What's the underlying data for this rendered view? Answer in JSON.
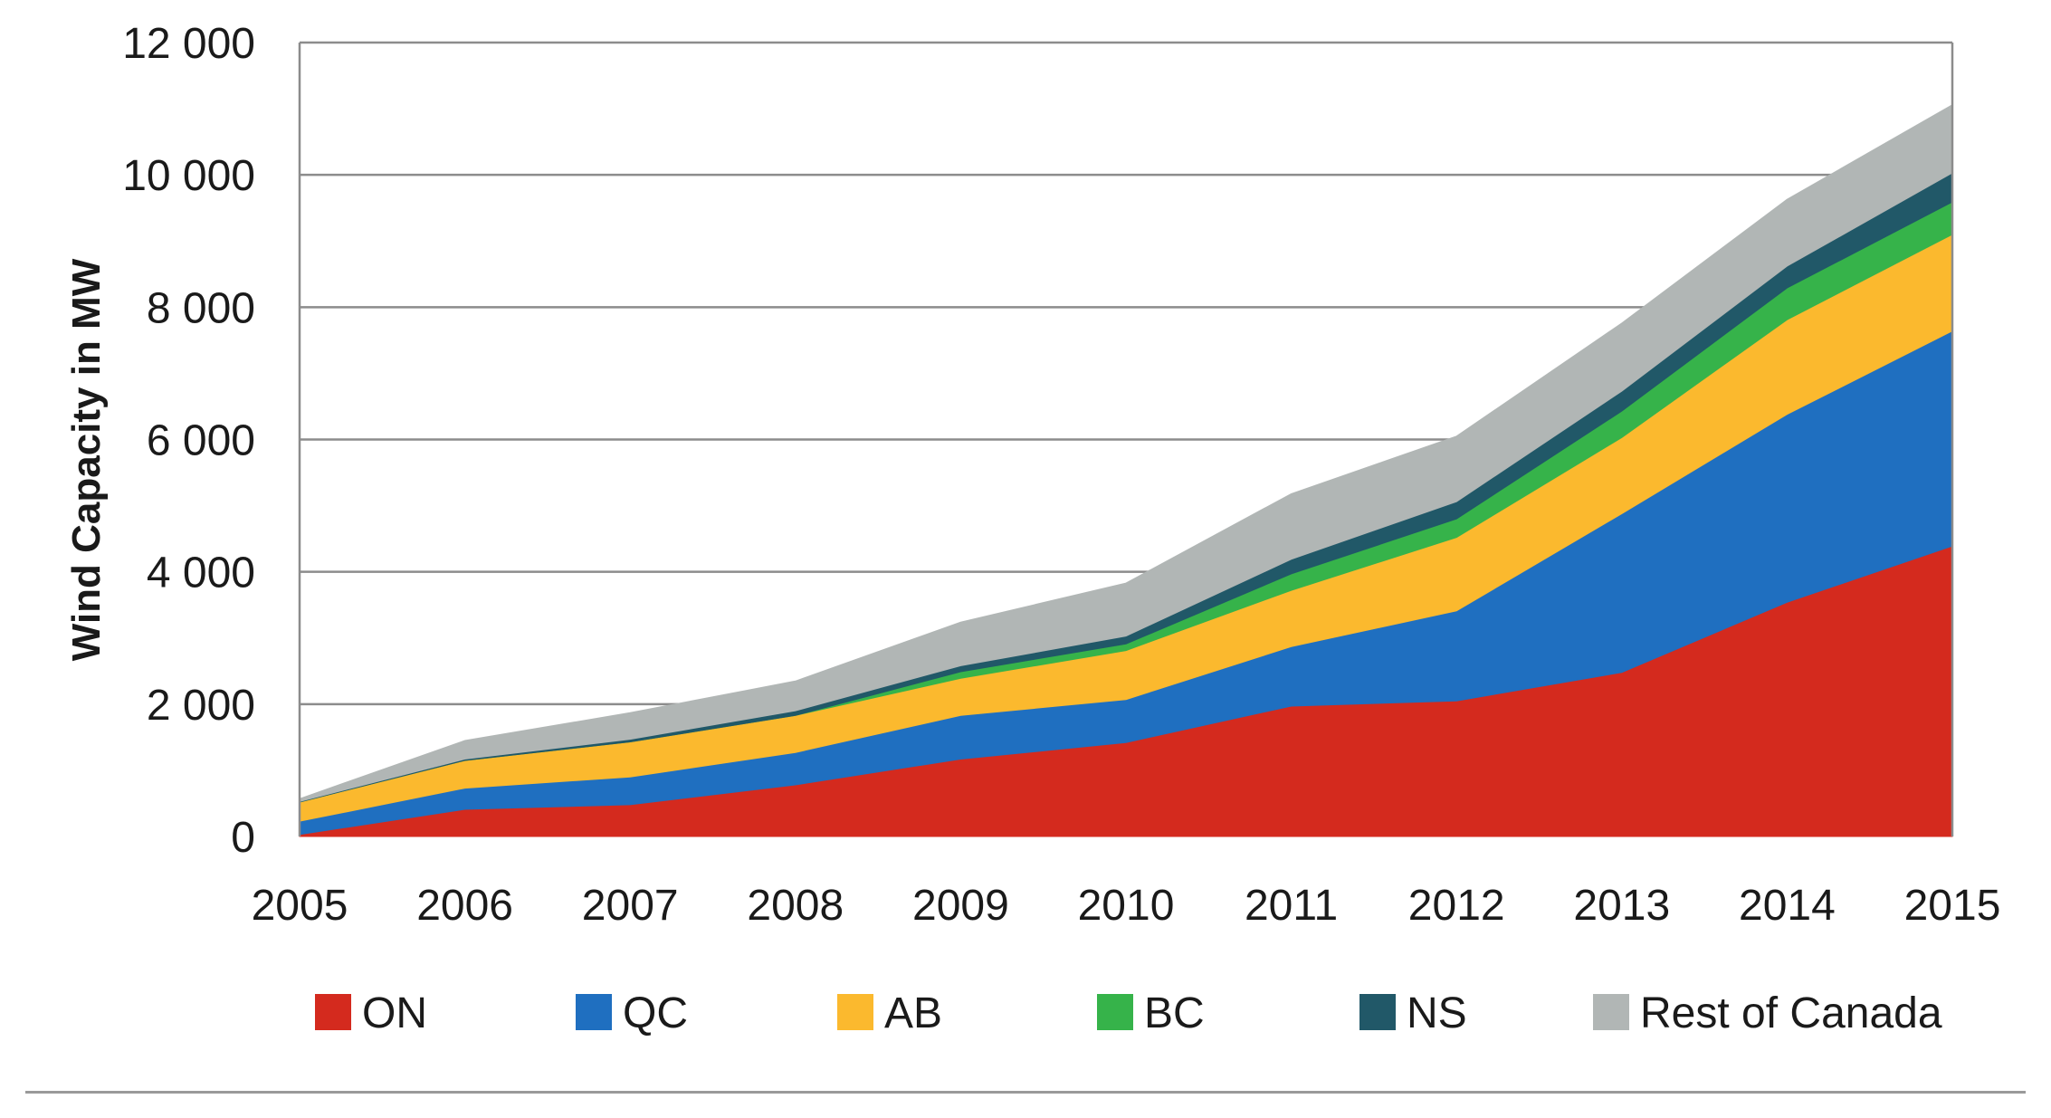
{
  "chart_data": {
    "type": "area",
    "stacked": true,
    "title": "",
    "xlabel": "",
    "ylabel": "Wind Capacity in MW",
    "ylim": [
      0,
      12000
    ],
    "yticks": [
      0,
      2000,
      4000,
      6000,
      8000,
      10000,
      12000
    ],
    "ytick_labels": [
      "0",
      "2 000",
      "4 000",
      "6 000",
      "8 000",
      "10 000",
      "12 000"
    ],
    "grid": true,
    "legend_position": "bottom",
    "x": [
      "2005",
      "2006",
      "2007",
      "2008",
      "2009",
      "2010",
      "2011",
      "2012",
      "2013",
      "2014",
      "2015"
    ],
    "series": [
      {
        "name": "ON",
        "color": "#d42a1e",
        "values": [
          30,
          410,
          480,
          780,
          1170,
          1420,
          1970,
          2050,
          2480,
          3540,
          4390
        ]
      },
      {
        "name": "QC",
        "color": "#1f6fc0",
        "values": [
          200,
          320,
          420,
          490,
          660,
          650,
          900,
          1360,
          2400,
          2840,
          3250
        ]
      },
      {
        "name": "AB",
        "color": "#fbb92e",
        "values": [
          290,
          420,
          530,
          560,
          560,
          740,
          850,
          1110,
          1150,
          1430,
          1460
        ]
      },
      {
        "name": "BC",
        "color": "#36b34a",
        "values": [
          0,
          0,
          0,
          0,
          100,
          100,
          250,
          280,
          400,
          480,
          490
        ]
      },
      {
        "name": "NS",
        "color": "#215868",
        "values": [
          10,
          20,
          40,
          70,
          90,
          120,
          220,
          260,
          300,
          330,
          440
        ]
      },
      {
        "name": "Rest of Canada",
        "color": "#b1b6b5",
        "values": [
          40,
          280,
          400,
          450,
          660,
          800,
          990,
          990,
          1030,
          1010,
          1030
        ]
      }
    ]
  }
}
